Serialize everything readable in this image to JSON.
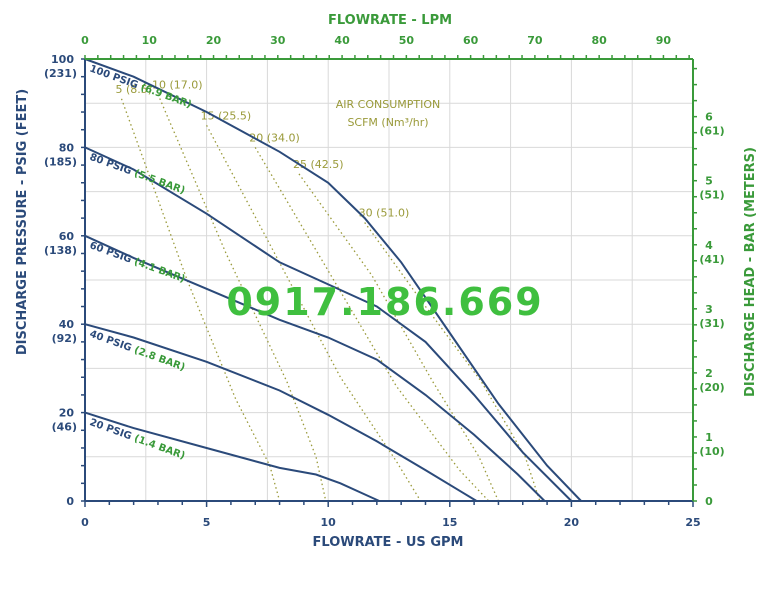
{
  "watermark": "0917.186.669",
  "colors": {
    "navy": "#2b4a7a",
    "green": "#3a9a3a",
    "olive": "#9a9a3a",
    "grid": "#d9d9d9"
  },
  "chart_data": {
    "type": "line",
    "xlabel": "FLOWRATE - US GPM",
    "x2label": "FLOWRATE - LPM",
    "ylabel": "DISCHARGE PRESSURE - PSIG (FEET)",
    "y2label": "DISCHARGE HEAD - BAR (METERS)",
    "xlim": [
      0,
      25
    ],
    "ylim": [
      0,
      100
    ],
    "x2lim": [
      0,
      94.6
    ],
    "y2lim": [
      0,
      6.9
    ],
    "grid": true,
    "x_ticks": [
      {
        "v": 0,
        "label": "0"
      },
      {
        "v": 5,
        "label": "5"
      },
      {
        "v": 10,
        "label": "10"
      },
      {
        "v": 15,
        "label": "15"
      },
      {
        "v": 20,
        "label": "20"
      },
      {
        "v": 25,
        "label": "25"
      }
    ],
    "x2_ticks": [
      {
        "v": 0,
        "label": "0"
      },
      {
        "v": 10,
        "label": "10"
      },
      {
        "v": 20,
        "label": "20"
      },
      {
        "v": 30,
        "label": "30"
      },
      {
        "v": 40,
        "label": "40"
      },
      {
        "v": 50,
        "label": "50"
      },
      {
        "v": 60,
        "label": "60"
      },
      {
        "v": 70,
        "label": "70"
      },
      {
        "v": 80,
        "label": "80"
      },
      {
        "v": 90,
        "label": "90"
      }
    ],
    "y_ticks": [
      {
        "v": 0,
        "label": "0",
        "sub": ""
      },
      {
        "v": 20,
        "label": "20",
        "sub": "(46)"
      },
      {
        "v": 40,
        "label": "40",
        "sub": "(92)"
      },
      {
        "v": 60,
        "label": "60",
        "sub": "(138)"
      },
      {
        "v": 80,
        "label": "80",
        "sub": "(185)"
      },
      {
        "v": 100,
        "label": "100",
        "sub": "(231)"
      }
    ],
    "y2_ticks": [
      {
        "v": 0,
        "label": "0",
        "sub": ""
      },
      {
        "v": 1,
        "label": "1",
        "sub": "(10)"
      },
      {
        "v": 2,
        "label": "2",
        "sub": "(20)"
      },
      {
        "v": 3,
        "label": "3",
        "sub": "(31)"
      },
      {
        "v": 4,
        "label": "4",
        "sub": "(41)"
      },
      {
        "v": 5,
        "label": "5",
        "sub": "(51)"
      },
      {
        "v": 6,
        "label": "6",
        "sub": "(61)"
      }
    ],
    "series": [
      {
        "name": "100 PSIG",
        "bar": "(6.9 BAR)",
        "points": [
          [
            0,
            100
          ],
          [
            2,
            96
          ],
          [
            5,
            88
          ],
          [
            8,
            79
          ],
          [
            10,
            72
          ],
          [
            11.5,
            64
          ],
          [
            13,
            54
          ],
          [
            15,
            38
          ],
          [
            17,
            22
          ],
          [
            19,
            8
          ],
          [
            20.4,
            0
          ]
        ]
      },
      {
        "name": "80 PSIG",
        "bar": "(5.5 BAR)",
        "points": [
          [
            0,
            80
          ],
          [
            2,
            75
          ],
          [
            5,
            65
          ],
          [
            8,
            54
          ],
          [
            10,
            49
          ],
          [
            12,
            44
          ],
          [
            14,
            36
          ],
          [
            16,
            24
          ],
          [
            18,
            11
          ],
          [
            20,
            0
          ]
        ]
      },
      {
        "name": "60 PSIG",
        "bar": "(4.1 BAR)",
        "points": [
          [
            0,
            60
          ],
          [
            2,
            55
          ],
          [
            5,
            48
          ],
          [
            8,
            41
          ],
          [
            10,
            37
          ],
          [
            12,
            32
          ],
          [
            14,
            24
          ],
          [
            16,
            15
          ],
          [
            17.8,
            6
          ],
          [
            18.9,
            0
          ]
        ]
      },
      {
        "name": "40 PSIG",
        "bar": "(2.8 BAR)",
        "points": [
          [
            0,
            40
          ],
          [
            2,
            37
          ],
          [
            5,
            31.5
          ],
          [
            8,
            25
          ],
          [
            10,
            19.5
          ],
          [
            12,
            13.5
          ],
          [
            14,
            7
          ],
          [
            15.5,
            2
          ],
          [
            16.1,
            0
          ]
        ]
      },
      {
        "name": "20 PSIG",
        "bar": "(1.4 BAR)",
        "points": [
          [
            0,
            20
          ],
          [
            2,
            16.5
          ],
          [
            5,
            12
          ],
          [
            8,
            7.5
          ],
          [
            9.5,
            6
          ],
          [
            10.5,
            4
          ],
          [
            11.5,
            1.5
          ],
          [
            12.1,
            0
          ]
        ]
      }
    ],
    "air_title": [
      "AIR CONSUMPTION",
      "SCFM (Nm³/hr)"
    ],
    "air_consumption": [
      {
        "label": "5 (8.5)",
        "points": [
          [
            1.5,
            91
          ],
          [
            4.2,
            50
          ],
          [
            6.2,
            23
          ],
          [
            7.6,
            8
          ],
          [
            8,
            0
          ]
        ]
      },
      {
        "label": "10 (17.0)",
        "points": [
          [
            3,
            92
          ],
          [
            5.8,
            56
          ],
          [
            8.3,
            27
          ],
          [
            9.5,
            10
          ],
          [
            9.9,
            0
          ]
        ]
      },
      {
        "label": "15 (25.5)",
        "points": [
          [
            5,
            85
          ],
          [
            7.8,
            56
          ],
          [
            10.5,
            28
          ],
          [
            12.8,
            9
          ],
          [
            13.8,
            0
          ]
        ]
      },
      {
        "label": "20 (34.0)",
        "points": [
          [
            7,
            80
          ],
          [
            9.9,
            53
          ],
          [
            12.8,
            26
          ],
          [
            15.4,
            7
          ],
          [
            16.6,
            0
          ]
        ]
      },
      {
        "label": "25 (42.5)",
        "points": [
          [
            8.8,
            74
          ],
          [
            11.8,
            51
          ],
          [
            14.3,
            27
          ],
          [
            16.2,
            10
          ],
          [
            17,
            0
          ]
        ]
      },
      {
        "label": "30 (51.0)",
        "points": [
          [
            11.5,
            63
          ],
          [
            14,
            44
          ],
          [
            16.3,
            27
          ],
          [
            18.1,
            10
          ],
          [
            18.7,
            0
          ]
        ]
      }
    ]
  }
}
